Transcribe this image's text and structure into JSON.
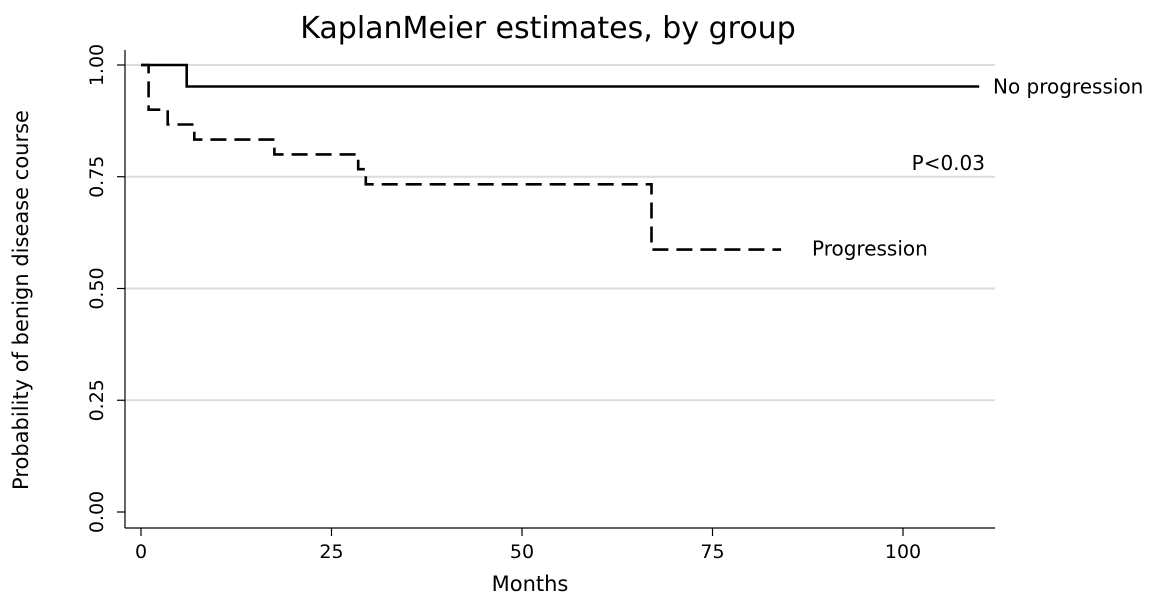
{
  "chart_data": {
    "type": "line",
    "title": "KaplanMeier estimates, by group",
    "xlabel": "Months",
    "ylabel": "Probability of benign disease course",
    "xlim": [
      0,
      110
    ],
    "ylim": [
      0,
      1
    ],
    "xticks": [
      0,
      25,
      50,
      75,
      100
    ],
    "xtick_labels": [
      "0",
      "25",
      "50",
      "75",
      "100"
    ],
    "yticks": [
      0,
      0.25,
      0.5,
      0.75,
      1
    ],
    "ytick_labels": [
      "0.00",
      "0.25",
      "0.50",
      "0.75",
      "1.00"
    ],
    "grid": "horizontal",
    "series": [
      {
        "name": "No progression",
        "line_style": "solid",
        "color": "#000000",
        "x": [
          0,
          6,
          6,
          110
        ],
        "y": [
          1.0,
          1.0,
          0.952,
          0.952
        ]
      },
      {
        "name": "Progression",
        "line_style": "dashed",
        "color": "#000000",
        "x": [
          0,
          1,
          1,
          2.5,
          2.5,
          3.5,
          3.5,
          7,
          7,
          17.5,
          17.5,
          28.5,
          28.5,
          29.5,
          29.5,
          67,
          67,
          84
        ],
        "y": [
          1.0,
          1.0,
          0.9,
          0.9,
          0.9,
          0.9,
          0.867,
          0.867,
          0.833,
          0.833,
          0.8,
          0.8,
          0.767,
          0.767,
          0.733,
          0.733,
          0.587,
          0.587
        ]
      }
    ],
    "annotations": [
      {
        "text": "P<0.03"
      }
    ]
  }
}
